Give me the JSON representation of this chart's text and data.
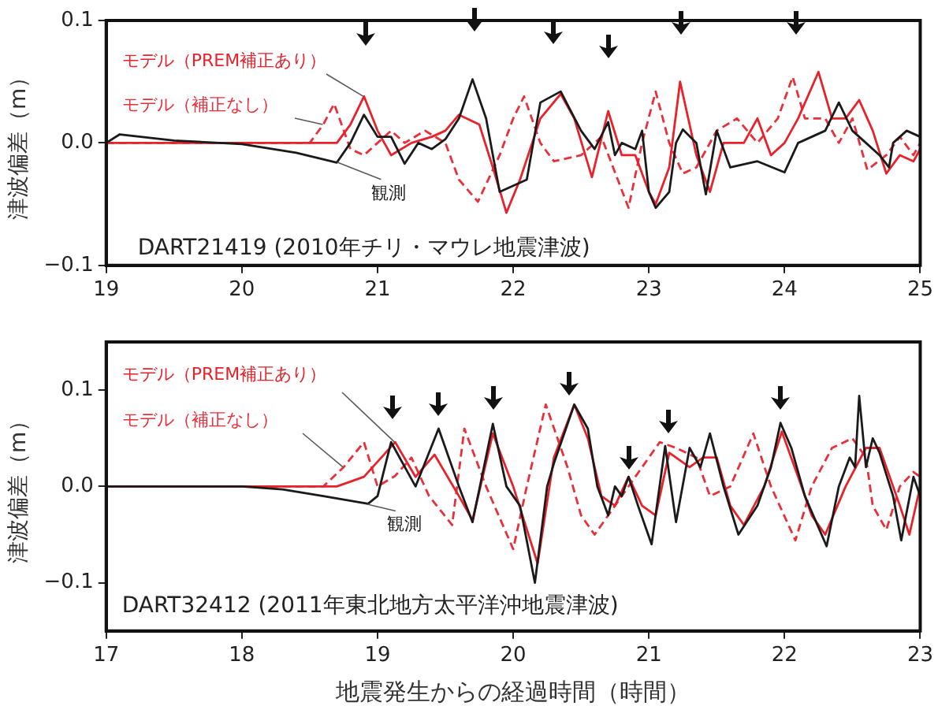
{
  "chart_data": [
    {
      "type": "line",
      "ylabel": "津波偏差（m）",
      "annotations": [
        "DART21419 (2010年チリ・マウレ地震津波)"
      ],
      "xlim": [
        19,
        25
      ],
      "xticks": [
        19,
        20,
        21,
        22,
        23,
        24,
        25
      ],
      "ylim": [
        -0.1,
        0.1
      ],
      "yticks": [
        {
          "value": -0.1,
          "label": "−0.1"
        },
        {
          "value": 0,
          "label": "0.0"
        },
        {
          "value": 0.1,
          "label": "0.1"
        }
      ],
      "grid": false,
      "legend": false,
      "series": [
        {
          "name": "観測",
          "color": "#1a1a1a",
          "line_style": "solid",
          "x": [
            19.0,
            19.1,
            19.5,
            20.0,
            20.4,
            20.7,
            20.8,
            20.9,
            21.0,
            21.1,
            21.2,
            21.3,
            21.4,
            21.5,
            21.6,
            21.7,
            21.8,
            21.9,
            22.0,
            22.1,
            22.2,
            22.35,
            22.5,
            22.6,
            22.7,
            22.75,
            22.8,
            22.9,
            22.95,
            23.0,
            23.05,
            23.15,
            23.2,
            23.25,
            23.35,
            23.42,
            23.5,
            23.6,
            23.8,
            24.0,
            24.1,
            24.3,
            24.4,
            24.5,
            24.6,
            24.7,
            24.77,
            24.8,
            24.9,
            25.0
          ],
          "values": [
            0.0,
            0.007,
            0.002,
            -0.001,
            -0.008,
            -0.016,
            0.0,
            0.023,
            0.005,
            0.005,
            -0.017,
            0.0,
            -0.005,
            0.003,
            0.02,
            0.052,
            0.02,
            -0.04,
            -0.035,
            -0.03,
            0.033,
            0.042,
            0.01,
            -0.005,
            0.017,
            -0.01,
            0.0,
            -0.005,
            0.01,
            -0.04,
            -0.053,
            -0.04,
            0.0,
            0.011,
            0.0,
            -0.042,
            0.01,
            -0.02,
            -0.015,
            -0.024,
            0.0,
            0.01,
            0.033,
            0.01,
            0.0,
            -0.01,
            -0.02,
            0.0,
            0.01,
            0.005
          ]
        },
        {
          "name": "モデル（PREM補正あり）",
          "color": "#e8212a",
          "line_style": "solid",
          "x": [
            19.0,
            20.7,
            20.8,
            20.9,
            21.0,
            21.1,
            21.25,
            21.4,
            21.5,
            21.6,
            21.75,
            21.85,
            21.95,
            22.05,
            22.2,
            22.35,
            22.45,
            22.58,
            22.7,
            22.8,
            22.9,
            23.0,
            23.05,
            23.15,
            23.23,
            23.35,
            23.45,
            23.55,
            23.7,
            23.8,
            23.9,
            24.0,
            24.1,
            24.25,
            24.35,
            24.45,
            24.55,
            24.65,
            24.75,
            24.85,
            24.95,
            25.0
          ],
          "values": [
            0.0,
            0.0,
            0.015,
            0.038,
            0.01,
            -0.01,
            0.0,
            0.005,
            0.01,
            0.023,
            0.015,
            -0.02,
            -0.057,
            -0.03,
            0.02,
            0.04,
            0.02,
            -0.028,
            0.026,
            -0.01,
            -0.01,
            -0.04,
            -0.05,
            -0.02,
            0.05,
            -0.01,
            -0.04,
            0.0,
            0.0,
            0.02,
            -0.01,
            0.0,
            0.02,
            0.058,
            0.02,
            0.02,
            0.035,
            0.01,
            -0.025,
            -0.01,
            -0.015,
            -0.005
          ]
        },
        {
          "name": "モデル（補正なし）",
          "color": "#e8303a",
          "line_style": "dashed",
          "x": [
            19.0,
            20.5,
            20.6,
            20.68,
            20.8,
            20.9,
            21.0,
            21.1,
            21.2,
            21.35,
            21.5,
            21.6,
            21.74,
            21.9,
            22.0,
            22.08,
            22.2,
            22.3,
            22.5,
            22.65,
            22.85,
            22.95,
            23.05,
            23.15,
            23.25,
            23.35,
            23.5,
            23.65,
            23.8,
            23.95,
            24.06,
            24.15,
            24.3,
            24.4,
            24.5,
            24.61,
            24.75,
            24.85,
            24.95,
            25.0
          ],
          "values": [
            0.0,
            0.0,
            0.015,
            0.032,
            -0.005,
            -0.01,
            0.0,
            0.01,
            0.0,
            0.01,
            0.0,
            -0.03,
            -0.048,
            -0.01,
            0.02,
            0.038,
            0.0,
            -0.015,
            -0.01,
            0.005,
            -0.053,
            0.0,
            0.042,
            0.0,
            -0.025,
            -0.02,
            0.01,
            0.02,
            0.0,
            0.02,
            0.054,
            0.02,
            0.02,
            0.0,
            0.02,
            -0.022,
            -0.01,
            0.005,
            -0.01,
            0.0
          ]
        }
      ]
    },
    {
      "type": "line",
      "ylabel": "津波偏差（m）",
      "xlabel": "地震発生からの経過時間（時間）",
      "annotations": [
        "DART32412 (2011年東北地方太平洋沖地震津波)"
      ],
      "xlim": [
        17,
        23
      ],
      "xticks": [
        17,
        18,
        19,
        20,
        21,
        22,
        23
      ],
      "ylim": [
        -0.15,
        0.15
      ],
      "yticks": [
        {
          "value": -0.1,
          "label": "−0.1"
        },
        {
          "value": 0,
          "label": "0.0"
        },
        {
          "value": 0.1,
          "label": "0.1"
        }
      ],
      "grid": false,
      "legend": false,
      "series": [
        {
          "name": "観測",
          "color": "#1a1a1a",
          "line_style": "solid",
          "x": [
            17.0,
            17.5,
            18.0,
            18.3,
            18.6,
            18.93,
            19.0,
            19.1,
            19.28,
            19.45,
            19.6,
            19.7,
            19.85,
            19.95,
            20.05,
            20.16,
            20.25,
            20.3,
            20.45,
            20.55,
            20.62,
            20.7,
            20.75,
            20.8,
            20.85,
            20.92,
            21.02,
            21.12,
            21.2,
            21.3,
            21.38,
            21.45,
            21.55,
            21.66,
            21.8,
            21.9,
            21.97,
            22.05,
            22.15,
            22.31,
            22.4,
            22.48,
            22.52,
            22.55,
            22.6,
            22.65,
            22.7,
            22.8,
            22.86,
            22.95,
            23.0
          ],
          "values": [
            0.0,
            0.0,
            0.0,
            -0.003,
            -0.01,
            -0.018,
            -0.01,
            0.046,
            0.0,
            0.06,
            0.0,
            -0.037,
            0.065,
            0.0,
            -0.02,
            -0.1,
            0.0,
            0.024,
            0.085,
            0.06,
            0.0,
            -0.03,
            0.0,
            -0.01,
            0.01,
            -0.02,
            -0.06,
            0.042,
            -0.037,
            0.04,
            0.02,
            0.055,
            0.0,
            -0.05,
            -0.02,
            0.02,
            0.066,
            0.04,
            -0.01,
            -0.062,
            0.0,
            0.03,
            0.02,
            0.094,
            0.02,
            0.05,
            0.035,
            -0.01,
            -0.056,
            0.01,
            -0.01
          ]
        },
        {
          "name": "モデル（PREM補正あり）",
          "color": "#e8212a",
          "line_style": "solid",
          "x": [
            17.0,
            18.7,
            18.9,
            19.13,
            19.28,
            19.42,
            19.6,
            19.7,
            19.85,
            20.0,
            20.18,
            20.3,
            20.45,
            20.55,
            20.65,
            20.75,
            20.85,
            20.95,
            21.05,
            21.15,
            21.3,
            21.4,
            21.5,
            21.6,
            21.7,
            21.85,
            21.98,
            22.1,
            22.2,
            22.3,
            22.45,
            22.6,
            22.7,
            22.85,
            22.92,
            23.0
          ],
          "values": [
            0.0,
            0.0,
            0.01,
            0.046,
            0.01,
            0.033,
            -0.01,
            -0.035,
            0.055,
            0.0,
            -0.08,
            0.03,
            0.085,
            0.05,
            -0.01,
            -0.02,
            0.01,
            -0.02,
            -0.03,
            0.035,
            0.02,
            0.03,
            0.03,
            -0.02,
            -0.04,
            0.0,
            0.057,
            0.01,
            -0.03,
            -0.05,
            0.0,
            0.04,
            0.04,
            -0.02,
            -0.05,
            0.0
          ]
        },
        {
          "name": "モデル（補正なし）",
          "color": "#e8303a",
          "line_style": "dashed",
          "x": [
            17.0,
            18.6,
            18.75,
            18.9,
            19.0,
            19.13,
            19.25,
            19.38,
            19.55,
            19.64,
            19.8,
            20.0,
            20.1,
            20.24,
            20.4,
            20.5,
            20.6,
            20.8,
            20.9,
            21.08,
            21.2,
            21.35,
            21.45,
            21.6,
            21.77,
            21.9,
            22.08,
            22.2,
            22.35,
            22.5,
            22.6,
            22.65,
            22.75,
            22.85,
            22.95,
            23.0
          ],
          "values": [
            0.0,
            0.0,
            0.02,
            0.046,
            0.0,
            0.011,
            0.03,
            -0.01,
            -0.04,
            0.06,
            0.0,
            -0.065,
            0.0,
            0.085,
            0.02,
            -0.03,
            -0.05,
            -0.01,
            0.01,
            0.046,
            0.04,
            0.03,
            -0.01,
            0.0,
            0.055,
            0.0,
            -0.056,
            0.0,
            0.04,
            0.05,
            0.03,
            -0.02,
            -0.045,
            0.0,
            0.015,
            0.01
          ]
        }
      ]
    }
  ]
}
